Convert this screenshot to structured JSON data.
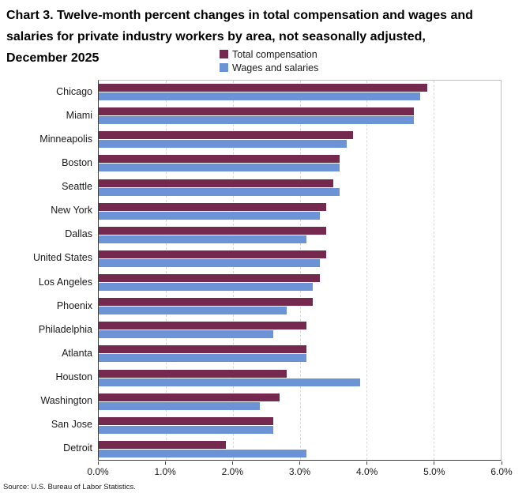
{
  "title_lines": [
    "Chart 3. Twelve-month percent changes in total compensation and wages and",
    "salaries for private industry workers by area, not seasonally adjusted,",
    "December 2025"
  ],
  "source": "Source: U.S. Bureau of Labor Statistics.",
  "chart_data": {
    "type": "bar",
    "orientation": "horizontal",
    "title": "Chart 3. Twelve-month percent changes in total compensation and wages and salaries for private industry workers by area, not seasonally adjusted, December 2025",
    "categories": [
      "Chicago",
      "Miami",
      "Minneapolis",
      "Boston",
      "Seattle",
      "New York",
      "Dallas",
      "United States",
      "Los Angeles",
      "Phoenix",
      "Philadelphia",
      "Atlanta",
      "Houston",
      "Washington",
      "San Jose",
      "Detroit"
    ],
    "series": [
      {
        "name": "Total compensation",
        "color": "#76294F",
        "values": [
          4.9,
          4.7,
          3.8,
          3.6,
          3.5,
          3.4,
          3.4,
          3.4,
          3.3,
          3.2,
          3.1,
          3.1,
          2.8,
          2.7,
          2.6,
          1.9
        ]
      },
      {
        "name": "Wages and salaries",
        "color": "#6B93D6",
        "values": [
          4.8,
          4.7,
          3.7,
          3.6,
          3.6,
          3.3,
          3.1,
          3.3,
          3.2,
          2.8,
          2.6,
          3.1,
          3.9,
          2.4,
          2.6,
          3.1
        ]
      }
    ],
    "x_tick_labels": [
      "0.0%",
      "1.0%",
      "2.0%",
      "3.0%",
      "4.0%",
      "5.0%",
      "6.0%"
    ],
    "xlim": [
      0,
      6
    ],
    "xlabel": "",
    "ylabel": "",
    "grid": "vertical-dashed",
    "legend_position": "top-center",
    "gridline_color": "#d9d9d9",
    "axis_color": "#404040"
  }
}
